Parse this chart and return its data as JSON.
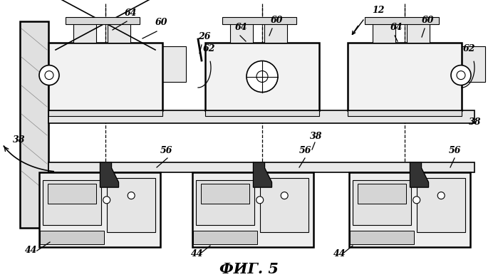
{
  "title": "ФИГ. 5",
  "title_fontsize": 15,
  "background_color": "#ffffff",
  "line_color": "#000000",
  "fig_width": 6.99,
  "fig_height": 3.89,
  "dpi": 100
}
